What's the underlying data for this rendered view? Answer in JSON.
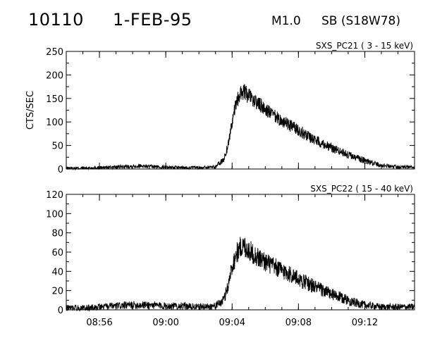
{
  "header": {
    "event_id": "10110",
    "date": "1-FEB-95",
    "goes_class": "M1.0",
    "flare_type": "SB (S18W78)"
  },
  "chart_data": [
    {
      "type": "line",
      "panel": "top",
      "label": "SXS_PC21  (  3 - 15 keV)",
      "ylabel": "CTS/SEC",
      "xlabel": "",
      "ylim": [
        0,
        250
      ],
      "yticks": [
        0,
        50,
        100,
        150,
        200,
        250
      ],
      "xlim": [
        "08:54",
        "09:15"
      ],
      "xticks": [
        "08:56",
        "09:00",
        "09:04",
        "09:08",
        "09:12"
      ],
      "show_xtick_labels": false,
      "grid": false,
      "series": [
        {
          "x": [
            "08:54",
            "08:55",
            "08:56",
            "08:57",
            "08:58",
            "08:58:30",
            "08:59",
            "09:00",
            "09:01",
            "09:02",
            "09:03",
            "09:03:30",
            "09:03:45",
            "09:04",
            "09:04:15",
            "09:04:30",
            "09:04:40",
            "09:04:50",
            "09:05",
            "09:05:30",
            "09:06",
            "09:06:30",
            "09:07",
            "09:07:30",
            "09:08",
            "09:08:30",
            "09:09",
            "09:09:30",
            "09:10",
            "09:10:30",
            "09:11",
            "09:11:30",
            "09:12",
            "09:12:30",
            "09:13",
            "09:14",
            "09:15"
          ],
          "y": [
            2,
            2,
            3,
            4,
            6,
            7,
            5,
            4,
            3,
            3,
            5,
            20,
            50,
            100,
            140,
            160,
            165,
            160,
            155,
            140,
            128,
            113,
            102,
            92,
            83,
            72,
            62,
            54,
            45,
            38,
            30,
            24,
            18,
            12,
            8,
            5,
            4
          ]
        }
      ]
    },
    {
      "type": "line",
      "panel": "bottom",
      "label": "SXS_PC22  ( 15 - 40 keV)",
      "ylabel": "",
      "xlabel": "",
      "ylim": [
        0,
        120
      ],
      "yticks": [
        0,
        20,
        40,
        60,
        80,
        100,
        120
      ],
      "xlim": [
        "08:54",
        "09:15"
      ],
      "xticks": [
        "08:56",
        "09:00",
        "09:04",
        "09:08",
        "09:12"
      ],
      "show_xtick_labels": true,
      "grid": false,
      "series": [
        {
          "x": [
            "08:54",
            "08:55",
            "08:56",
            "08:57",
            "08:58",
            "08:59",
            "09:00",
            "09:01",
            "09:02",
            "09:03",
            "09:03:30",
            "09:03:45",
            "09:04",
            "09:04:15",
            "09:04:30",
            "09:04:45",
            "09:05",
            "09:05:30",
            "09:06",
            "09:06:30",
            "09:07",
            "09:07:30",
            "09:08",
            "09:08:30",
            "09:09",
            "09:09:30",
            "09:10",
            "09:10:30",
            "09:11",
            "09:11:30",
            "09:12",
            "09:12:30",
            "09:13",
            "09:14",
            "09:15"
          ],
          "y": [
            2,
            2,
            3,
            4,
            5,
            5,
            4,
            4,
            3,
            4,
            10,
            25,
            45,
            58,
            65,
            66,
            62,
            55,
            50,
            45,
            41,
            37,
            32,
            28,
            24,
            20,
            16,
            13,
            10,
            7,
            5,
            4,
            3,
            3,
            3
          ]
        }
      ]
    }
  ]
}
